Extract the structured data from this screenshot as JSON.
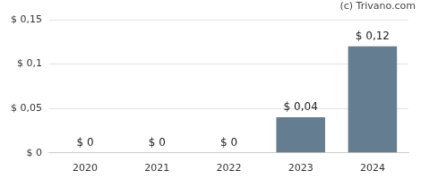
{
  "chart_data": {
    "type": "bar",
    "annotation": "(c) Trivano.com",
    "categories": [
      "2020",
      "2021",
      "2022",
      "2023",
      "2024"
    ],
    "values": [
      0,
      0,
      0,
      0.04,
      0.12
    ],
    "value_labels": [
      "$ 0",
      "$ 0",
      "$ 0",
      "$ 0,04",
      "$ 0,12"
    ],
    "data_labels": true,
    "color": "#647d91",
    "ylim": [
      0,
      0.15
    ],
    "yticks": [
      {
        "value": 0,
        "label": "$ 0"
      },
      {
        "value": 0.05,
        "label": "$ 0,05"
      },
      {
        "value": 0.1,
        "label": "$ 0,1"
      },
      {
        "value": 0.15,
        "label": "$ 0,15"
      }
    ],
    "grid": true
  }
}
